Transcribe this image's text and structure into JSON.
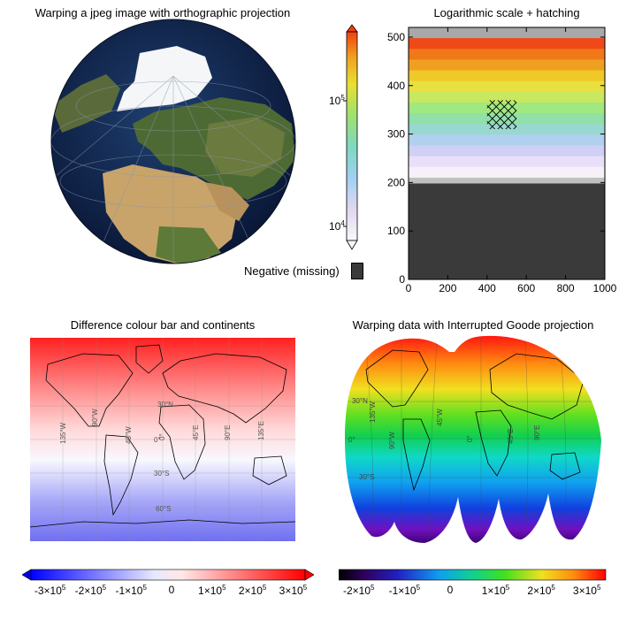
{
  "panels": {
    "orthographic": {
      "title": "Warping a jpeg image with orthographic projection"
    },
    "logscale": {
      "title": "Logarithmic scale + hatching"
    },
    "difference": {
      "title": "Difference colour bar and continents"
    },
    "goode": {
      "title": "Warping data with Interrupted Goode projection"
    }
  },
  "log_colorbar": {
    "ticks": [
      {
        "mantissa": "10",
        "exponent": "5",
        "value": 100000
      },
      {
        "mantissa": "10",
        "exponent": "4",
        "value": 10000
      }
    ],
    "missing_label": "Negative (missing)",
    "missing_color": "#3a3a3a"
  },
  "difference_colorbar": {
    "labels": [
      {
        "mantissa": "-3×10",
        "exponent": "5",
        "value": -300000
      },
      {
        "mantissa": "-2×10",
        "exponent": "5",
        "value": -200000
      },
      {
        "mantissa": "-1×10",
        "exponent": "5",
        "value": -100000
      },
      {
        "mantissa": "0",
        "exponent": "",
        "value": 0
      },
      {
        "mantissa": "1×10",
        "exponent": "5",
        "value": 100000
      },
      {
        "mantissa": "2×10",
        "exponent": "5",
        "value": 200000
      },
      {
        "mantissa": "3×10",
        "exponent": "5",
        "value": 300000
      }
    ]
  },
  "rainbow_colorbar": {
    "labels": [
      {
        "mantissa": "-2×10",
        "exponent": "5",
        "value": -200000
      },
      {
        "mantissa": "-1×10",
        "exponent": "5",
        "value": -100000
      },
      {
        "mantissa": "0",
        "exponent": "",
        "value": 0
      },
      {
        "mantissa": "1×10",
        "exponent": "5",
        "value": 100000
      },
      {
        "mantissa": "2×10",
        "exponent": "5",
        "value": 200000
      },
      {
        "mantissa": "3×10",
        "exponent": "5",
        "value": 300000
      }
    ]
  },
  "map_labels": {
    "difference": [
      "135°W",
      "90°W",
      "45°W",
      "0°",
      "45°E",
      "90°E",
      "135°E",
      "30°N",
      "0°",
      "30°S",
      "60°S"
    ],
    "goode": [
      "30°N",
      "0°",
      "30°S",
      "90°W",
      "0°",
      "45°E",
      "90°E",
      "135°W",
      "45°W"
    ]
  },
  "colors": {
    "log_top": "#f06010",
    "log_mid": "#9be090",
    "log_low": "#f0e8f8",
    "missing": "#3a3a3a",
    "diff_red": "#ff0000",
    "diff_blue": "#2040ff"
  },
  "chart_data": {
    "type": "heatmap",
    "title": "Logarithmic scale + hatching",
    "xlim": [
      0,
      1000
    ],
    "ylim": [
      0,
      520
    ],
    "xticks": [
      0,
      200,
      400,
      600,
      800,
      1000
    ],
    "yticks": [
      0,
      100,
      200,
      300,
      400,
      500
    ],
    "color_scale": "log",
    "colorbar_range": [
      10000,
      300000
    ],
    "missing_band_y": [
      0,
      200
    ],
    "hatch_region": {
      "x": [
        400,
        550
      ],
      "y": [
        310,
        370
      ]
    }
  }
}
